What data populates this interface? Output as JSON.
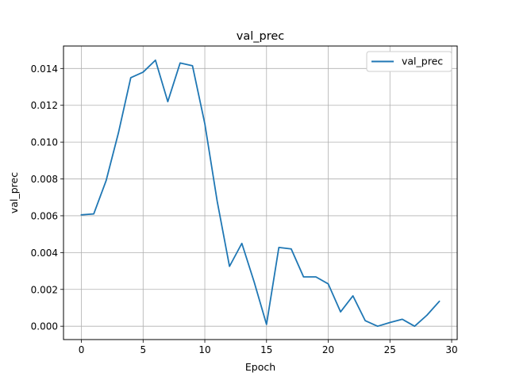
{
  "chart_data": {
    "type": "line",
    "title": "val_prec",
    "xlabel": "Epoch",
    "ylabel": "val_prec",
    "xlim": [
      -1.45,
      30.45
    ],
    "ylim": [
      -0.000725,
      0.01522
    ],
    "xticks": [
      0,
      5,
      10,
      15,
      20,
      25,
      30
    ],
    "xtick_labels": [
      "0",
      "5",
      "10",
      "15",
      "20",
      "25",
      "30"
    ],
    "yticks": [
      0.0,
      0.002,
      0.004,
      0.006,
      0.008,
      0.01,
      0.012,
      0.014
    ],
    "ytick_labels": [
      "0.000",
      "0.002",
      "0.004",
      "0.006",
      "0.008",
      "0.010",
      "0.012",
      "0.014"
    ],
    "grid": true,
    "legend": "top-right",
    "series": [
      {
        "name": "val_prec",
        "color": "#1f77b4",
        "x": [
          0,
          1,
          2,
          3,
          4,
          5,
          6,
          7,
          8,
          9,
          10,
          11,
          12,
          13,
          14,
          15,
          16,
          17,
          18,
          19,
          20,
          21,
          22,
          23,
          24,
          25,
          26,
          27,
          28,
          29
        ],
        "values": [
          0.00605,
          0.0061,
          0.0079,
          0.0105,
          0.0135,
          0.0138,
          0.01445,
          0.0122,
          0.0143,
          0.01415,
          0.011,
          0.0068,
          0.00325,
          0.0045,
          0.0024,
          0.0001,
          0.00428,
          0.0042,
          0.00268,
          0.00268,
          0.0023,
          0.00078,
          0.00165,
          0.0003,
          0.0,
          0.0002,
          0.00038,
          0.0,
          0.0006,
          0.00135
        ]
      }
    ]
  }
}
